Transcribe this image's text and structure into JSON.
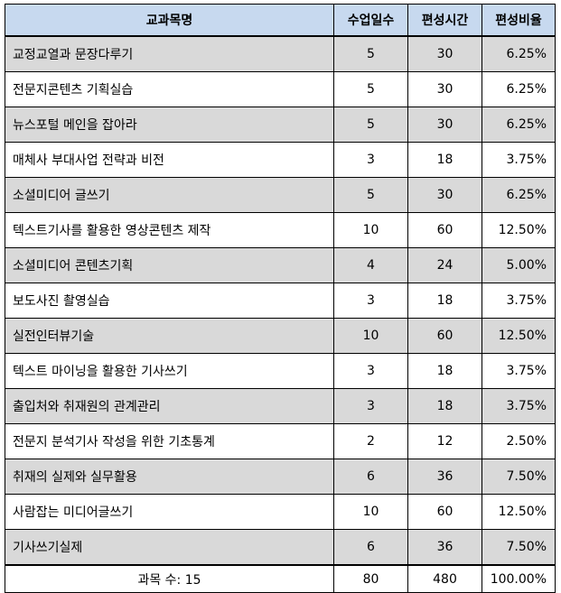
{
  "header": {
    "col1": "교과목명",
    "col2": "수업일수",
    "col3": "편성시간",
    "col4": "편성비율"
  },
  "rows": [
    {
      "name": "교정교열과 문장다루기",
      "days": "5",
      "hours": "30",
      "ratio": "6.25%"
    },
    {
      "name": "전문지콘텐츠 기획실습",
      "days": "5",
      "hours": "30",
      "ratio": "6.25%"
    },
    {
      "name": "뉴스포털 메인을 잡아라",
      "days": "5",
      "hours": "30",
      "ratio": "6.25%"
    },
    {
      "name": "매체사 부대사업 전략과 비전",
      "days": "3",
      "hours": "18",
      "ratio": "3.75%"
    },
    {
      "name": "소셜미디어 글쓰기",
      "days": "5",
      "hours": "30",
      "ratio": "6.25%"
    },
    {
      "name": "텍스트기사를 활용한 영상콘텐츠 제작",
      "days": "10",
      "hours": "60",
      "ratio": "12.50%"
    },
    {
      "name": "소셜미디어 콘텐츠기획",
      "days": "4",
      "hours": "24",
      "ratio": "5.00%"
    },
    {
      "name": "보도사진 촬영실습",
      "days": "3",
      "hours": "18",
      "ratio": "3.75%"
    },
    {
      "name": "실전인터뷰기술",
      "days": "10",
      "hours": "60",
      "ratio": "12.50%"
    },
    {
      "name": "텍스트 마이닝을 활용한 기사쓰기",
      "days": "3",
      "hours": "18",
      "ratio": "3.75%"
    },
    {
      "name": "출입처와 취재원의 관계관리",
      "days": "3",
      "hours": "18",
      "ratio": "3.75%"
    },
    {
      "name": "전문지 분석기사 작성을 위한 기초통계",
      "days": "2",
      "hours": "12",
      "ratio": "2.50%"
    },
    {
      "name": "취재의 실제와 실무활용",
      "days": "6",
      "hours": "36",
      "ratio": "7.50%"
    },
    {
      "name": "사람잡는 미디어글쓰기",
      "days": "10",
      "hours": "60",
      "ratio": "12.50%"
    },
    {
      "name": "기사쓰기실제",
      "days": "6",
      "hours": "36",
      "ratio": "7.50%"
    }
  ],
  "footer": {
    "label": "과목 수: 15",
    "days": "80",
    "hours": "480",
    "ratio": "100.00%"
  },
  "colors": {
    "header_bg": "#c7d9ef",
    "shaded_row_bg": "#d9d9d9",
    "border": "#000000"
  }
}
